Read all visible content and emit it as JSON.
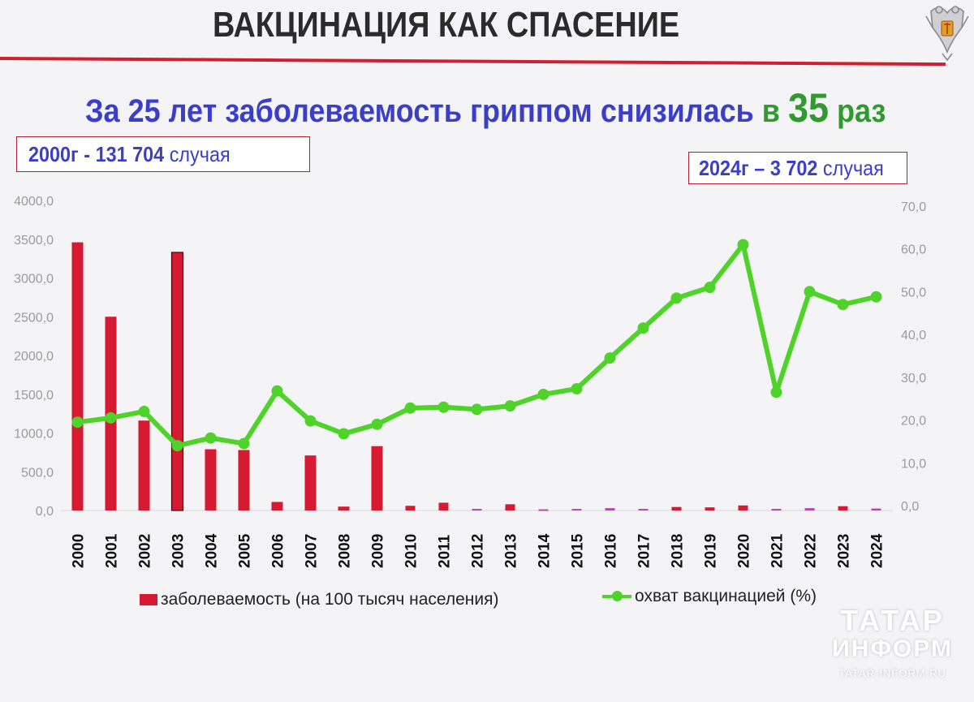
{
  "slide": {
    "title": "ВАКЦИНАЦИЯ КАК СПАСЕНИЕ",
    "headline": {
      "part1": "За 25 лет заболеваемость гриппом снизилась",
      "part2": "в",
      "number": "35",
      "part3": "раз"
    },
    "box_2000": {
      "bold": "2000г - 131 704",
      "normal": "случая"
    },
    "box_2024": {
      "bold": "2024г – 3 702",
      "normal": "случая"
    }
  },
  "colors": {
    "bars": "#d51a32",
    "line": "#4fd22a",
    "headline_blue": "#3a3ec8",
    "headline_green": "#2f9a2f",
    "accent_red": "#d02030"
  },
  "icons": {
    "emblem": "rospotrebnadzor-emblem-icon"
  },
  "watermark": {
    "line1": "ТАТАР",
    "line2": "ИНФОРМ",
    "line3": "TATAR-INFORM.RU"
  },
  "chart_data": {
    "type": "bar",
    "categories": [
      "2000",
      "2001",
      "2002",
      "2003",
      "2004",
      "2005",
      "2006",
      "2007",
      "2008",
      "2009",
      "2010",
      "2011",
      "2012",
      "2013",
      "2014",
      "2015",
      "2016",
      "2017",
      "2018",
      "2019",
      "2020",
      "2021",
      "2022",
      "2023",
      "2024"
    ],
    "series": [
      {
        "name": "заболеваемость (на 100 тысяч населения)",
        "type": "bar",
        "axis": "left",
        "values": [
          3460,
          2500,
          1160,
          3330,
          790,
          780,
          110,
          710,
          50,
          830,
          60,
          100,
          20,
          80,
          15,
          20,
          30,
          20,
          45,
          40,
          65,
          20,
          30,
          55,
          25
        ]
      },
      {
        "name": "охват вакцинацией (%)",
        "type": "line",
        "axis": "right",
        "values": [
          19.5,
          20.5,
          22.0,
          14.0,
          15.8,
          14.5,
          26.8,
          19.8,
          16.8,
          19.0,
          22.8,
          23.0,
          22.5,
          23.3,
          26.0,
          27.3,
          34.5,
          41.5,
          48.5,
          51.0,
          61.0,
          26.5,
          50.0,
          47.0,
          48.8
        ]
      }
    ],
    "y_left": {
      "min": 0,
      "max": 4000,
      "ticks": [
        "0,0",
        "500,0",
        "1000,0",
        "1500,0",
        "2000,0",
        "2500,0",
        "3000,0",
        "3500,0",
        "4000,0"
      ]
    },
    "y_right": {
      "min": 0,
      "max": 70,
      "ticks": [
        "0,0",
        "10,0",
        "20,0",
        "30,0",
        "40,0",
        "50,0",
        "60,0",
        "70,0"
      ]
    },
    "grid": false,
    "legend_position": "bottom"
  }
}
